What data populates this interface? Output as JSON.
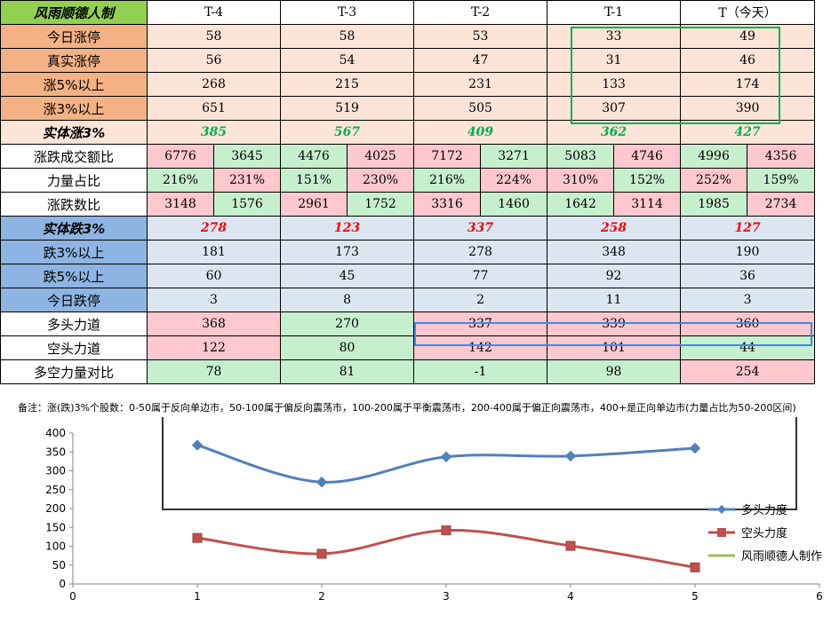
{
  "table": {
    "header": [
      "风雨顺德人制",
      "T-4",
      "T-3",
      "T-2",
      "T-1",
      "T（今天）"
    ],
    "rows": [
      {
        "label": "今日涨停",
        "values": [
          "58",
          "58",
          "53",
          "33",
          "49"
        ]
      },
      {
        "label": "真实涨停",
        "values": [
          "56",
          "54",
          "47",
          "31",
          "46"
        ]
      },
      {
        "label": "涨5%以上",
        "values": [
          "268",
          "215",
          "231",
          "133",
          "174"
        ]
      },
      {
        "label": "涨3%以上",
        "values": [
          "651",
          "519",
          "505",
          "307",
          "390"
        ]
      },
      {
        "label": "实体涨3%",
        "values": [
          "385",
          "567",
          "409",
          "362",
          "427"
        ]
      }
    ],
    "pair_rows": [
      {
        "label": "涨跌成交额比",
        "values": [
          [
            "6776",
            "3645"
          ],
          [
            "4476",
            "4025"
          ],
          [
            "7172",
            "3271"
          ],
          [
            "5083",
            "4746"
          ],
          [
            "4996",
            "4356"
          ]
        ]
      },
      {
        "label": "力量占比",
        "values": [
          [
            "216%",
            "231%"
          ],
          [
            "151%",
            "230%"
          ],
          [
            "216%",
            "224%"
          ],
          [
            "310%",
            "152%"
          ],
          [
            "252%",
            "159%"
          ]
        ]
      },
      {
        "label": "涨跌数比",
        "values": [
          [
            "3148",
            "1576"
          ],
          [
            "2961",
            "1752"
          ],
          [
            "3316",
            "1460"
          ],
          [
            "1642",
            "3114"
          ],
          [
            "1985",
            "2734"
          ]
        ]
      }
    ],
    "down_rows": [
      {
        "label": "实体跌3%",
        "values": [
          "278",
          "123",
          "337",
          "258",
          "127"
        ]
      },
      {
        "label": "跌3%以上",
        "values": [
          "181",
          "173",
          "278",
          "348",
          "190"
        ]
      },
      {
        "label": "跌5%以上",
        "values": [
          "60",
          "45",
          "77",
          "92",
          "36"
        ]
      },
      {
        "label": "今日跌停",
        "values": [
          "3",
          "8",
          "2",
          "11",
          "3"
        ]
      }
    ],
    "force_rows": [
      {
        "label": "多头力道",
        "values": [
          "368",
          "270",
          "337",
          "339",
          "360"
        ]
      },
      {
        "label": "空头力道",
        "values": [
          "122",
          "80",
          "142",
          "101",
          "44"
        ]
      },
      {
        "label": "多空力量对比",
        "values": [
          "78",
          "81",
          "-1",
          "98",
          "254"
        ]
      }
    ],
    "note": "备注：涨(跌)3%个股数：0-50属于反向单边市，50-100属于偏反向震荡市，100-200属于平衡震荡市，200-400属于偏正向震荡市，400+是正向单边市(力量占比为50-200区间)"
  },
  "colors": {
    "peach": "#fce4d6",
    "green_cell": "#c6efce",
    "pink_cell": "#ffc7ce",
    "light_blue": "#dce6f1",
    "mid_blue": "#8db4e2",
    "header_green": "#92d050",
    "series_blue": "#4f81bd",
    "series_red": "#c0504d",
    "series_green": "#9bbb59"
  },
  "chart_data": {
    "type": "line",
    "xlim": [
      0,
      6
    ],
    "ylim": [
      0,
      400
    ],
    "x_ticks": [
      "0",
      "1",
      "2",
      "3",
      "4",
      "5",
      "6"
    ],
    "y_ticks": [
      "0",
      "50",
      "100",
      "150",
      "200",
      "250",
      "300",
      "350",
      "400"
    ],
    "series": [
      {
        "name": "多头力度",
        "x": [
          1,
          2,
          3,
          4,
          5
        ],
        "values": [
          368,
          270,
          337,
          339,
          360
        ],
        "color": "#4f81bd",
        "marker": "diamond"
      },
      {
        "name": "空头力度",
        "x": [
          1,
          2,
          3,
          4,
          5
        ],
        "values": [
          122,
          80,
          142,
          101,
          44
        ],
        "color": "#c0504d",
        "marker": "square"
      },
      {
        "name": "风雨顺德人制作",
        "x": [],
        "values": [],
        "color": "#9bbb59",
        "marker": "none"
      }
    ],
    "legend": "right",
    "grid": false
  }
}
